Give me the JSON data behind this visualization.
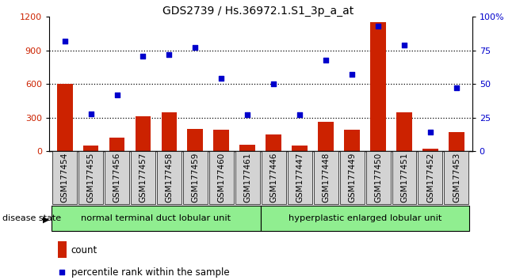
{
  "title": "GDS2739 / Hs.36972.1.S1_3p_a_at",
  "samples": [
    "GSM177454",
    "GSM177455",
    "GSM177456",
    "GSM177457",
    "GSM177458",
    "GSM177459",
    "GSM177460",
    "GSM177461",
    "GSM177446",
    "GSM177447",
    "GSM177448",
    "GSM177449",
    "GSM177450",
    "GSM177451",
    "GSM177452",
    "GSM177453"
  ],
  "counts": [
    600,
    50,
    120,
    310,
    350,
    200,
    195,
    60,
    150,
    50,
    260,
    190,
    1150,
    350,
    20,
    170
  ],
  "percentiles": [
    82,
    28,
    42,
    71,
    72,
    77,
    54,
    27,
    50,
    27,
    68,
    57,
    93,
    79,
    14,
    47
  ],
  "bar_color": "#cc2200",
  "dot_color": "#0000cc",
  "left_ylim": [
    0,
    1200
  ],
  "right_ylim": [
    0,
    100
  ],
  "left_yticks": [
    0,
    300,
    600,
    900,
    1200
  ],
  "right_yticks": [
    0,
    25,
    50,
    75,
    100
  ],
  "right_yticklabels": [
    "0",
    "25",
    "50",
    "75",
    "100%"
  ],
  "group1_label": "normal terminal duct lobular unit",
  "group2_label": "hyperplastic enlarged lobular unit",
  "disease_state_label": "disease state",
  "legend_count_label": "count",
  "legend_percentile_label": "percentile rank within the sample",
  "background_color": "#ffffff",
  "group_bg_color": "#90EE90",
  "tick_bg_color": "#d3d3d3",
  "title_fontsize": 10,
  "tick_fontsize": 7.5,
  "legend_fontsize": 8.5
}
